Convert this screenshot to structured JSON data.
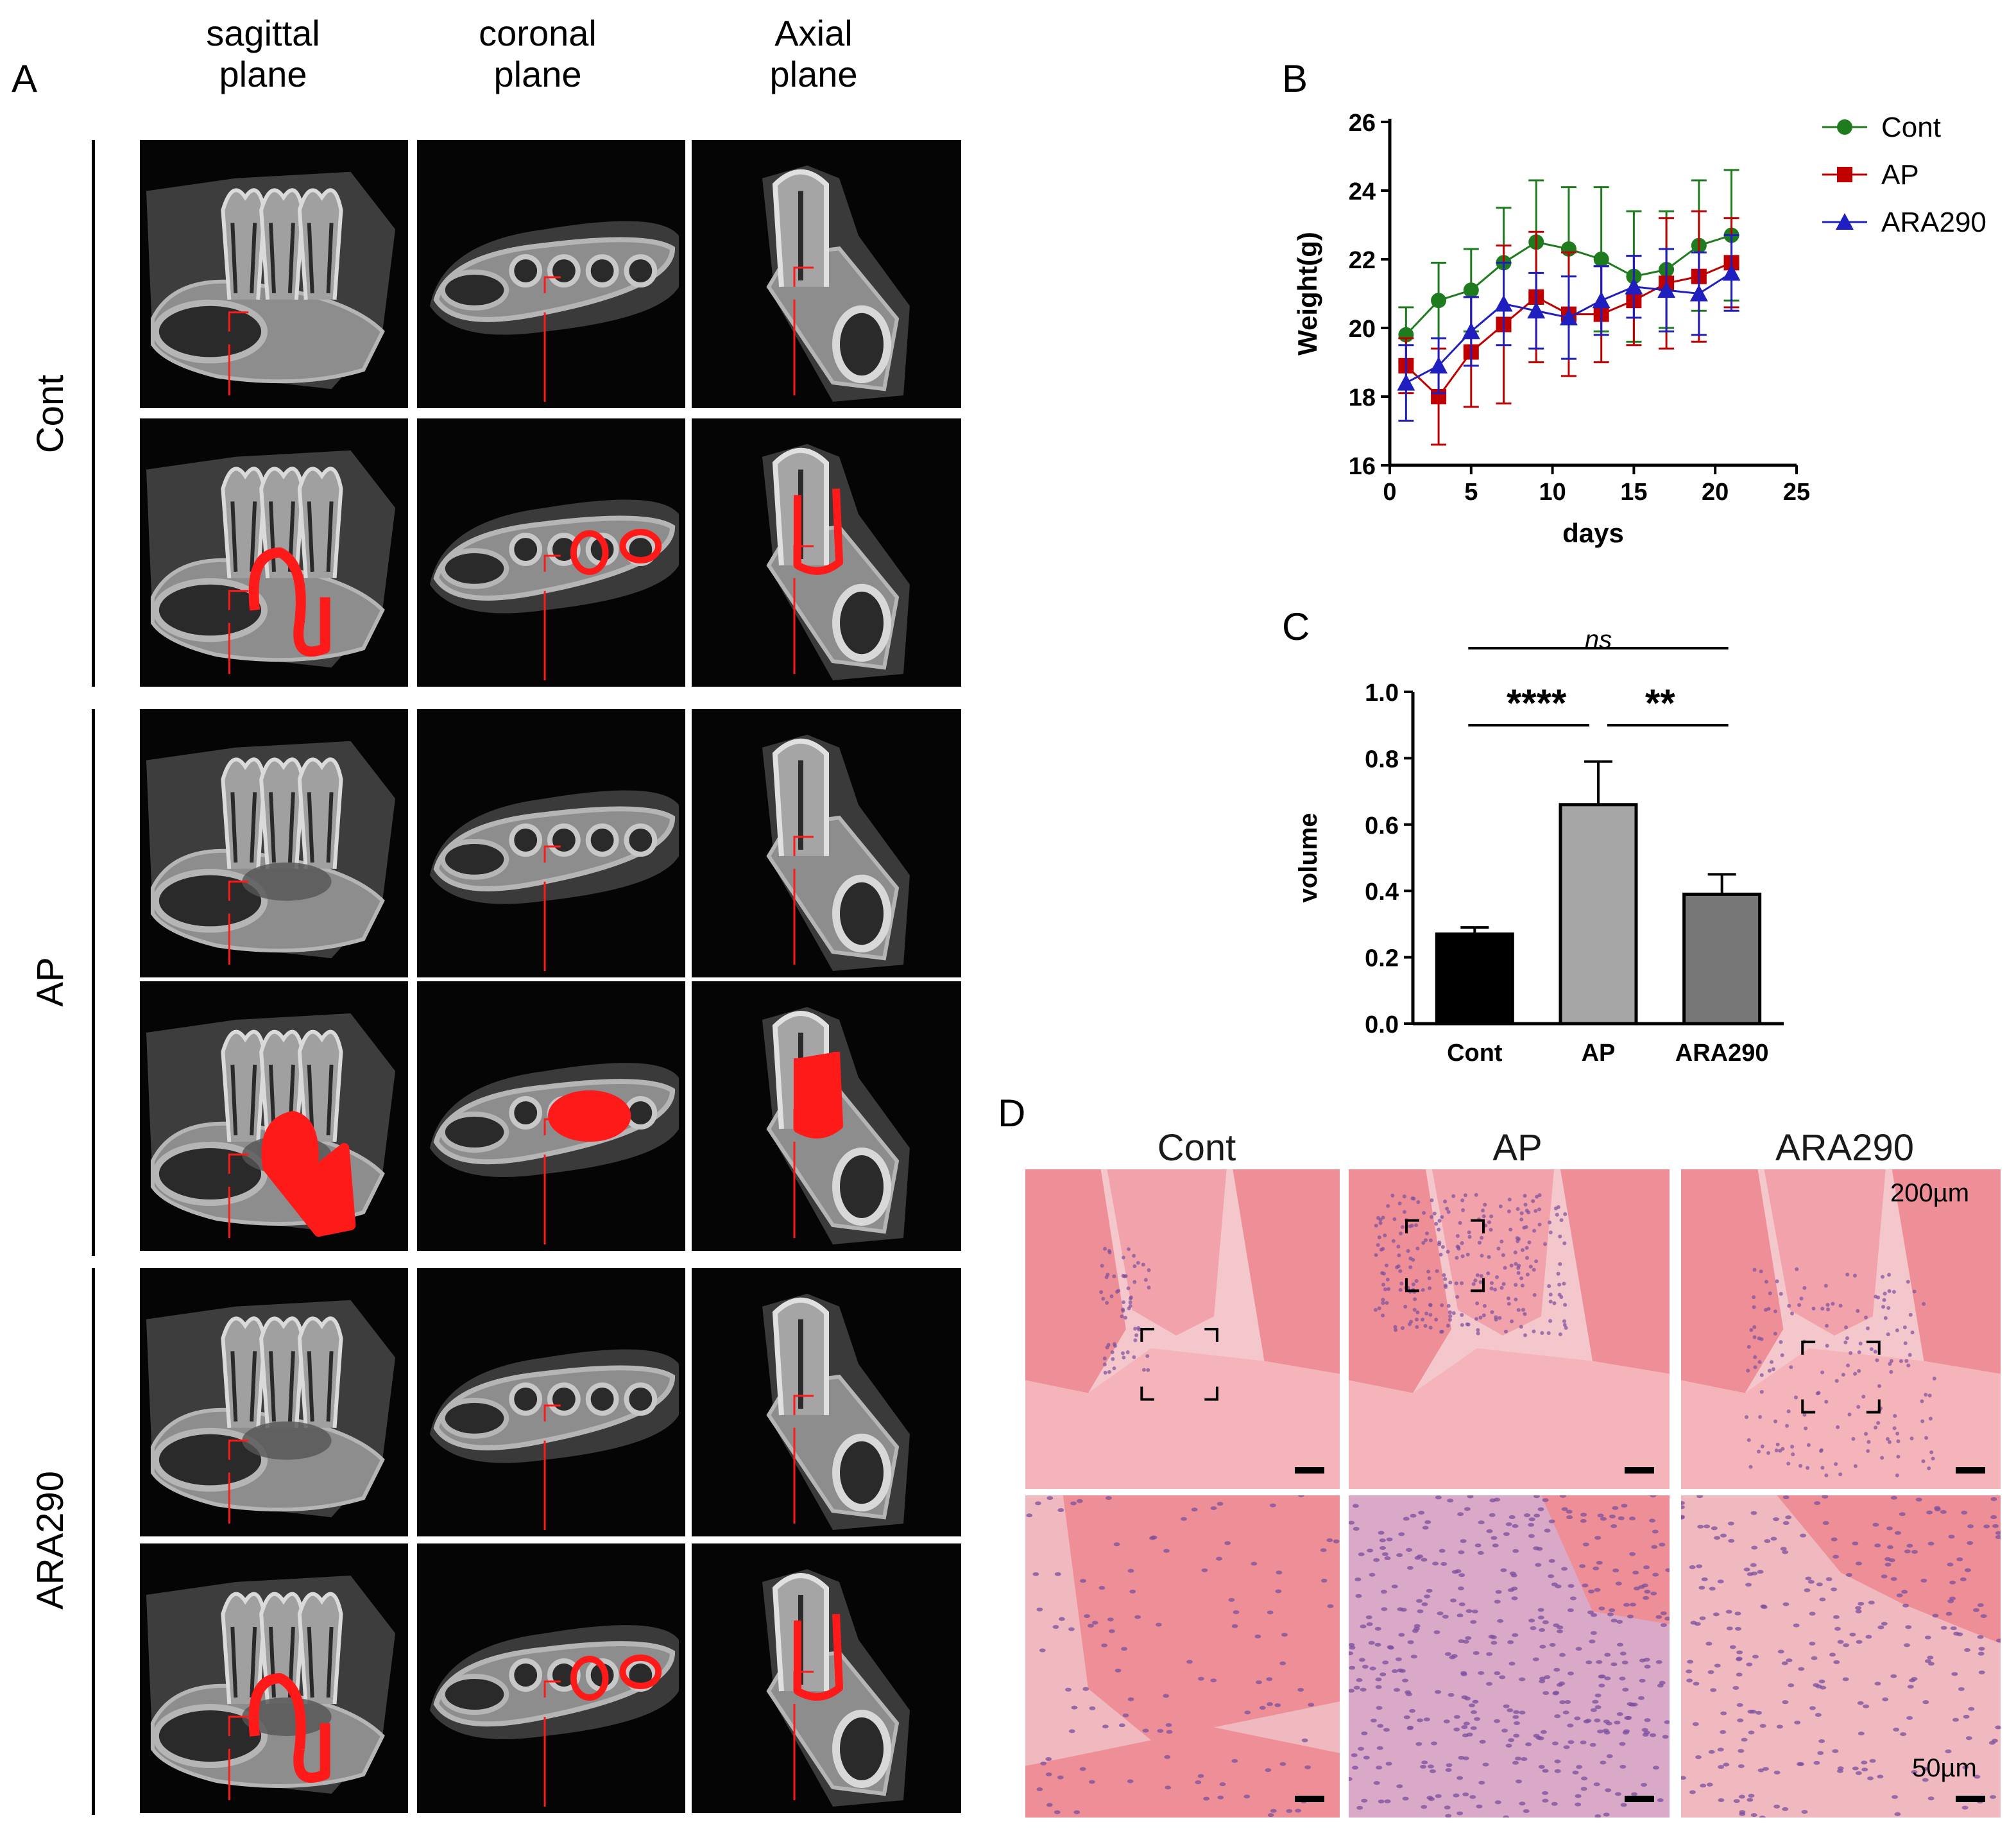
{
  "panel_a": {
    "letter": "A",
    "columns": [
      {
        "line1": "sagittal",
        "line2": "plane"
      },
      {
        "line1": "coronal",
        "line2": "plane"
      },
      {
        "line1": "Axial",
        "line2": "plane"
      }
    ],
    "rows": [
      "Cont",
      "AP",
      "ARA290"
    ]
  },
  "panel_b": {
    "letter": "B"
  },
  "panel_c": {
    "letter": "C"
  },
  "panel_d": {
    "letter": "D",
    "columns": [
      "Cont",
      "AP",
      "ARA290"
    ],
    "scale_top": "200µm",
    "scale_bottom": "50µm"
  },
  "colors": {
    "cont": "#1e7b1e",
    "ap": "#c00000",
    "ara290": "#1f1fbf",
    "roi": "#ff1a1a",
    "he_pink": "#ee8f97",
    "he_purple": "#7a4f9e"
  },
  "chart_data": [
    {
      "type": "line",
      "xlabel": "days",
      "ylabel": "Weight(g)",
      "xlim": [
        0,
        25
      ],
      "ylim": [
        16,
        26
      ],
      "xticks": [
        0,
        5,
        10,
        15,
        20,
        25
      ],
      "yticks": [
        16,
        18,
        20,
        22,
        24,
        26
      ],
      "x": [
        1,
        3,
        5,
        7,
        9,
        11,
        13,
        15,
        17,
        19,
        21
      ],
      "legend_position": "top-right",
      "series": [
        {
          "name": "Cont",
          "marker": "circle",
          "values": [
            19.8,
            20.8,
            21.1,
            21.9,
            22.5,
            22.3,
            22.0,
            21.5,
            21.7,
            22.4,
            22.7
          ],
          "errors": [
            0.8,
            1.1,
            1.2,
            1.6,
            1.8,
            1.8,
            2.1,
            1.9,
            1.7,
            1.9,
            1.9
          ]
        },
        {
          "name": "AP",
          "marker": "square",
          "values": [
            18.9,
            18.0,
            19.3,
            20.1,
            20.9,
            20.4,
            20.4,
            20.8,
            21.3,
            21.5,
            21.9
          ],
          "errors": [
            0.8,
            1.4,
            1.6,
            2.3,
            1.9,
            1.8,
            1.4,
            1.3,
            1.9,
            1.9,
            1.3
          ]
        },
        {
          "name": "ARA290",
          "marker": "triangle",
          "values": [
            18.4,
            18.9,
            19.9,
            20.7,
            20.5,
            20.3,
            20.8,
            21.2,
            21.1,
            21.0,
            21.6
          ],
          "errors": [
            1.1,
            0.8,
            1.0,
            1.2,
            1.1,
            1.2,
            1.0,
            0.9,
            1.2,
            1.2,
            1.1
          ]
        }
      ]
    },
    {
      "type": "bar",
      "ylabel": "volume",
      "ylim": [
        0,
        1.0
      ],
      "yticks": [
        "0.0",
        "0.2",
        "0.4",
        "0.6",
        "0.8",
        "1.0"
      ],
      "categories": [
        "Cont",
        "AP",
        "ARA290"
      ],
      "values": [
        0.27,
        0.66,
        0.39
      ],
      "errors": [
        0.02,
        0.13,
        0.06
      ],
      "bar_colors": [
        "#000000",
        "#a6a6a6",
        "#777777"
      ],
      "significance": [
        {
          "from": "Cont",
          "to": "AP",
          "label": "****"
        },
        {
          "from": "AP",
          "to": "ARA290",
          "label": "**"
        },
        {
          "from": "Cont",
          "to": "ARA290",
          "label": "ns"
        }
      ]
    }
  ]
}
